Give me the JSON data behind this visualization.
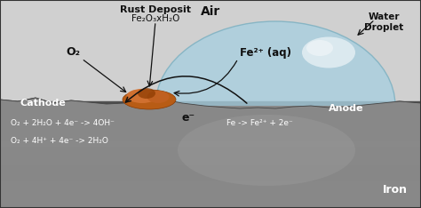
{
  "labels": {
    "air": "Air",
    "water_droplet": "Water\nDroplet",
    "rust_deposit_line1": "Rust Deposit",
    "rust_deposit_line2": "Fe₂O₃xH₂O",
    "o2": "O₂",
    "fe2plus": "Fe²⁺ (aq)",
    "cathode": "Cathode",
    "anode": "Anode",
    "eminus": "e⁻",
    "iron": "Iron",
    "eq1": "O₂ + 2H₂O + 4e⁻ -> 4OH⁻",
    "eq2": "O₂ + 4H⁺ + 4e⁻ -> 2H₂O",
    "eq3": "Fe -> Fe²⁺ + 2e⁻"
  },
  "bg_color": "#d0d0d0",
  "iron_dark": "#606060",
  "iron_light": "#b0b0b0",
  "water_color": "#a8cfe0",
  "water_edge": "#7aafc0",
  "water_hi_color": "#e8f4f8",
  "rust_main": "#b85c15",
  "rust_light": "#d07030",
  "rust_dark": "#8b3a00",
  "text_dark": "#111111",
  "text_white": "#ffffff",
  "arrow_color": "#111111"
}
